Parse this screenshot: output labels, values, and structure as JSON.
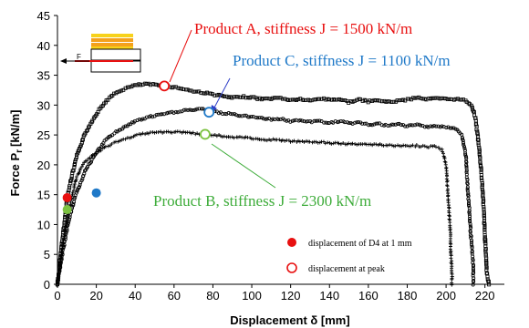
{
  "chart_data": {
    "type": "scatter",
    "xlabel": "Displacement  δ [mm]",
    "ylabel_main": "Force P",
    "ylabel_sub": "r",
    "ylabel_unit": "[kN/m]",
    "xlim": [
      0,
      230
    ],
    "ylim": [
      0,
      45
    ],
    "xticks": [
      0,
      20,
      40,
      60,
      80,
      100,
      120,
      140,
      160,
      180,
      200,
      220
    ],
    "yticks": [
      0,
      5,
      10,
      15,
      20,
      25,
      30,
      35,
      40,
      45
    ],
    "grid": false,
    "inset_label": "F",
    "series": [
      {
        "name": "Product A",
        "marker": "square",
        "color": "#000000",
        "points": [
          [
            0,
            0
          ],
          [
            2,
            6
          ],
          [
            4,
            11.5
          ],
          [
            5,
            14.5
          ],
          [
            7,
            17.5
          ],
          [
            10,
            21.5
          ],
          [
            14,
            25
          ],
          [
            18,
            27.5
          ],
          [
            22,
            29.5
          ],
          [
            26,
            31
          ],
          [
            30,
            32
          ],
          [
            35,
            32.8
          ],
          [
            40,
            33.3
          ],
          [
            45,
            33.5
          ],
          [
            50,
            33.4
          ],
          [
            55,
            33.2
          ],
          [
            60,
            33
          ],
          [
            65,
            32.7
          ],
          [
            70,
            32.3
          ],
          [
            75,
            32.1
          ],
          [
            80,
            31.8
          ],
          [
            85,
            31.5
          ],
          [
            90,
            31.2
          ],
          [
            95,
            31.4
          ],
          [
            100,
            31.3
          ],
          [
            105,
            31
          ],
          [
            110,
            31.1
          ],
          [
            115,
            31.2
          ],
          [
            120,
            30.8
          ],
          [
            125,
            31
          ],
          [
            130,
            30.7
          ],
          [
            135,
            31.1
          ],
          [
            140,
            30.9
          ],
          [
            145,
            31
          ],
          [
            150,
            30.5
          ],
          [
            155,
            30.9
          ],
          [
            160,
            30.6
          ],
          [
            165,
            30.8
          ],
          [
            170,
            30.5
          ],
          [
            175,
            30.7
          ],
          [
            180,
            30.9
          ],
          [
            185,
            31.3
          ],
          [
            190,
            31
          ],
          [
            195,
            31.1
          ],
          [
            200,
            31
          ],
          [
            205,
            31
          ],
          [
            210,
            30.8
          ],
          [
            213,
            30
          ],
          [
            215,
            28
          ],
          [
            217,
            23
          ],
          [
            219,
            15
          ],
          [
            220,
            8
          ],
          [
            221,
            2
          ],
          [
            222,
            0
          ]
        ]
      },
      {
        "name": "Product C",
        "marker": "circle",
        "color": "#000000",
        "points": [
          [
            0,
            0
          ],
          [
            3,
            6
          ],
          [
            6,
            11
          ],
          [
            10,
            15.5
          ],
          [
            15,
            19.5
          ],
          [
            20,
            22
          ],
          [
            25,
            24.2
          ],
          [
            30,
            25.5
          ],
          [
            35,
            26.4
          ],
          [
            40,
            27.3
          ],
          [
            45,
            27.8
          ],
          [
            50,
            28.2
          ],
          [
            55,
            28.5
          ],
          [
            60,
            28.8
          ],
          [
            65,
            29.1
          ],
          [
            70,
            29.2
          ],
          [
            75,
            29.3
          ],
          [
            80,
            29
          ],
          [
            85,
            28.6
          ],
          [
            90,
            28.5
          ],
          [
            95,
            28.2
          ],
          [
            100,
            28
          ],
          [
            105,
            27.9
          ],
          [
            110,
            27.6
          ],
          [
            115,
            27.7
          ],
          [
            120,
            27.3
          ],
          [
            125,
            27.4
          ],
          [
            130,
            27.2
          ],
          [
            135,
            27.3
          ],
          [
            140,
            27
          ],
          [
            145,
            27.3
          ],
          [
            150,
            26.9
          ],
          [
            155,
            27.1
          ],
          [
            160,
            26.7
          ],
          [
            165,
            26.9
          ],
          [
            170,
            26.5
          ],
          [
            175,
            26.8
          ],
          [
            180,
            26.5
          ],
          [
            185,
            26.7
          ],
          [
            190,
            26.4
          ],
          [
            195,
            26.5
          ],
          [
            200,
            26.3
          ],
          [
            205,
            26
          ],
          [
            208,
            25
          ],
          [
            210,
            22
          ],
          [
            211,
            17
          ],
          [
            212,
            12
          ],
          [
            213,
            7
          ],
          [
            214,
            3
          ],
          [
            214,
            0
          ]
        ]
      },
      {
        "name": "Product B",
        "marker": "plus",
        "color": "#000000",
        "points": [
          [
            0,
            0
          ],
          [
            2,
            5
          ],
          [
            4,
            9
          ],
          [
            6,
            12.5
          ],
          [
            8,
            15.5
          ],
          [
            10,
            18
          ],
          [
            12,
            19.5
          ],
          [
            15,
            20.8
          ],
          [
            20,
            22
          ],
          [
            25,
            23
          ],
          [
            30,
            23.8
          ],
          [
            35,
            24.4
          ],
          [
            40,
            24.9
          ],
          [
            45,
            25.2
          ],
          [
            50,
            25.4
          ],
          [
            55,
            25.5
          ],
          [
            60,
            25.5
          ],
          [
            65,
            25.4
          ],
          [
            70,
            25.3
          ],
          [
            75,
            25.1
          ],
          [
            80,
            25
          ],
          [
            85,
            24.8
          ],
          [
            90,
            24.6
          ],
          [
            95,
            24.6
          ],
          [
            100,
            24.4
          ],
          [
            105,
            24.2
          ],
          [
            110,
            24.2
          ],
          [
            115,
            24.1
          ],
          [
            120,
            23.9
          ],
          [
            125,
            23.9
          ],
          [
            130,
            23.8
          ],
          [
            135,
            23.8
          ],
          [
            140,
            23.6
          ],
          [
            145,
            23.6
          ],
          [
            150,
            23.5
          ],
          [
            155,
            23.5
          ],
          [
            160,
            23.4
          ],
          [
            165,
            23.4
          ],
          [
            170,
            23.2
          ],
          [
            175,
            23.3
          ],
          [
            180,
            23.1
          ],
          [
            185,
            23.2
          ],
          [
            190,
            23
          ],
          [
            195,
            23.1
          ],
          [
            198,
            22.5
          ],
          [
            200,
            20
          ],
          [
            201,
            15
          ],
          [
            202,
            10
          ],
          [
            202.5,
            5
          ],
          [
            203,
            2
          ],
          [
            203,
            0
          ]
        ]
      }
    ],
    "annotations": [
      {
        "text": "Product A, stiffness  J = 1500 kN/m",
        "color": "#e81010"
      },
      {
        "text": "Product C, stiffness  J = 1100 kN/m",
        "color": "#1f79c8"
      },
      {
        "text": "Product B, stiffness  J =  2300 kN/m",
        "color": "#3eac3a"
      }
    ],
    "markers_d4": [
      {
        "series": "Product A",
        "x": 5,
        "y": 14.5,
        "color": "#e81010"
      },
      {
        "series": "Product B",
        "x": 5,
        "y": 12.5,
        "color": "#7dc242"
      },
      {
        "series": "Product C",
        "x": 20,
        "y": 15.3,
        "color": "#1f79c8"
      }
    ],
    "markers_peak": [
      {
        "series": "Product A",
        "x": 55,
        "y": 33.2,
        "color": "#e81010"
      },
      {
        "series": "Product C",
        "x": 78,
        "y": 28.8,
        "color": "#1f79c8"
      },
      {
        "series": "Product B",
        "x": 76,
        "y": 25.1,
        "color": "#7dc242"
      }
    ],
    "legend": [
      {
        "label": "displacement  of D4 at 1 mm",
        "marker": "filled-circle",
        "color": "#e81010"
      },
      {
        "label": "displacement  at peak",
        "marker": "open-circle",
        "color": "#e81010"
      }
    ],
    "colors": {
      "red": "#e81010",
      "blue": "#1f79c8",
      "green": "#3eac3a",
      "orange": "#f4a11c",
      "yellow": "#f7d21b"
    }
  }
}
